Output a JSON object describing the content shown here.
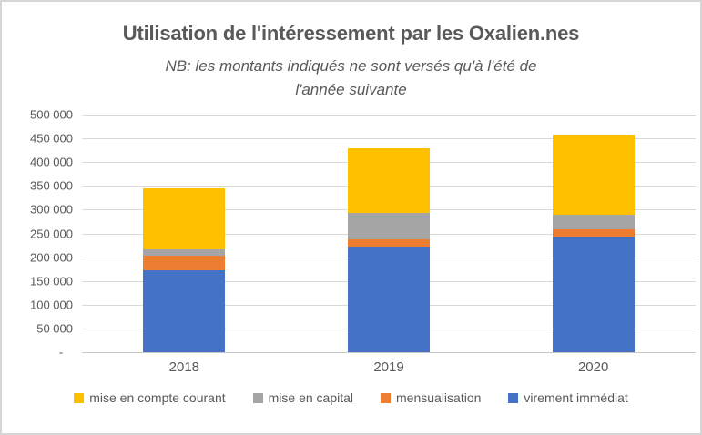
{
  "chart_data": {
    "type": "bar",
    "stacked": true,
    "title": "Utilisation de l'intéressement par les Oxalien.nes",
    "subtitle_lines": [
      "NB: les montants indiqués ne sont versés qu'à l'été de",
      "l'année suivante"
    ],
    "categories": [
      "2018",
      "2019",
      "2020"
    ],
    "series": [
      {
        "name": "virement immédiat",
        "color": "#4472C4",
        "values": [
          173000,
          222000,
          243000
        ]
      },
      {
        "name": "mensualisation",
        "color": "#ED7D31",
        "values": [
          31000,
          16000,
          15000
        ]
      },
      {
        "name": "mise en capital",
        "color": "#A5A5A5",
        "values": [
          12000,
          55000,
          32000
        ]
      },
      {
        "name": "mise en compte courant",
        "color": "#FFC000",
        "values": [
          128000,
          137000,
          168000
        ]
      }
    ],
    "legend": [
      {
        "label": "mise en compte courant",
        "color": "#FFC000"
      },
      {
        "label": "mise en capital",
        "color": "#A5A5A5"
      },
      {
        "label": "mensualisation",
        "color": "#ED7D31"
      },
      {
        "label": "virement immédiat",
        "color": "#4472C4"
      }
    ],
    "legend_position": "bottom",
    "grid": true,
    "ylim": [
      0,
      500000
    ],
    "ytick_step": 50000,
    "ytick_labels": [
      "500 000",
      "450 000",
      "400 000",
      "350 000",
      "300 000",
      "250 000",
      "200 000",
      "150 000",
      "100 000",
      "50 000",
      "-   "
    ]
  },
  "colors": {
    "text": "#595959",
    "grid": "#D9D9D9",
    "border": "#D6D6D6",
    "background": "#FFFFFF"
  }
}
